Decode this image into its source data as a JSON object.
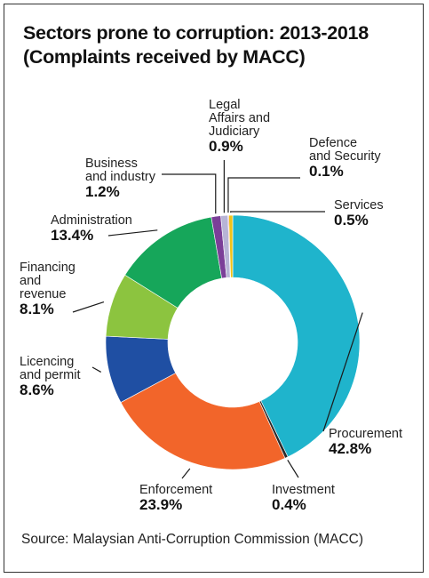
{
  "title": {
    "line1": "Sectors prone to corruption: 2013-2018",
    "line2": "(Complaints received by MACC)"
  },
  "source": "Source: Malaysian Anti-Corruption Commission (MACC)",
  "chart_data": {
    "type": "pie",
    "style": "donut",
    "unit": "%",
    "slices": [
      {
        "label": "Procurement",
        "value": 42.8,
        "value_label": "42.8%",
        "color": "#1fb4cc"
      },
      {
        "label": "Investment",
        "value": 0.4,
        "value_label": "0.4%",
        "color": "#2b2b2b"
      },
      {
        "label": "Enforcement",
        "value": 23.9,
        "value_label": "23.9%",
        "color": "#f2652a"
      },
      {
        "label": "Licencing and permit",
        "value": 8.6,
        "value_label": "8.6%",
        "color": "#1f4fa3"
      },
      {
        "label": "Financing and revenue",
        "value": 8.1,
        "value_label": "8.1%",
        "color": "#8cc43f"
      },
      {
        "label": "Administration",
        "value": 13.4,
        "value_label": "13.4%",
        "color": "#16a65a"
      },
      {
        "label": "Business and industry",
        "value": 1.2,
        "value_label": "1.2%",
        "color": "#7b3f98"
      },
      {
        "label": "Legal Affairs and Judiciary",
        "value": 0.9,
        "value_label": "0.9%",
        "color": "#b7b4d6"
      },
      {
        "label": "Defence and Security",
        "value": 0.1,
        "value_label": "0.1%",
        "color": "#e63c2f"
      },
      {
        "label": "Services",
        "value": 0.5,
        "value_label": "0.5%",
        "color": "#f2c318"
      }
    ]
  }
}
